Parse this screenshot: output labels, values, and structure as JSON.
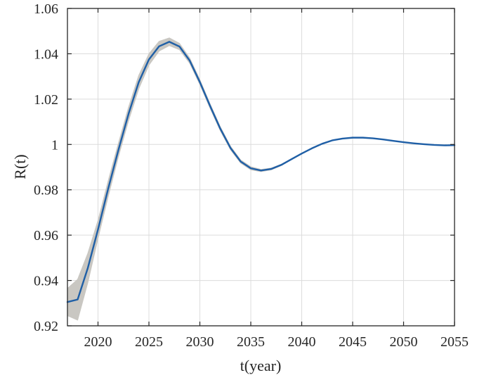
{
  "chart_data": {
    "type": "line",
    "title": "",
    "xlabel": "t(year)",
    "ylabel": "R(t)",
    "xlim": [
      2017,
      2055
    ],
    "ylim": [
      0.92,
      1.06
    ],
    "grid": true,
    "legend": "none",
    "colors": {
      "line": "#1f5fa6",
      "band": "#c9c7c2",
      "grid": "#dcdcdc",
      "axis": "#262626"
    },
    "xticks": [
      2020,
      2025,
      2030,
      2035,
      2040,
      2045,
      2050,
      2055
    ],
    "xtick_labels": [
      "2020",
      "2025",
      "2030",
      "2035",
      "2040",
      "2045",
      "2050",
      "2055"
    ],
    "yticks": [
      0.92,
      0.94,
      0.96,
      0.98,
      1.0,
      1.02,
      1.04,
      1.06
    ],
    "ytick_labels": [
      "0.92",
      "0.94",
      "0.96",
      "0.98",
      "1",
      "1.02",
      "1.04",
      "1.06"
    ],
    "series": [
      {
        "x": [
          2017,
          2018,
          2019,
          2020,
          2021,
          2022,
          2023,
          2024,
          2025,
          2026,
          2027,
          2028,
          2029,
          2030,
          2031,
          2032,
          2033,
          2034,
          2035,
          2036,
          2037,
          2038,
          2039,
          2040,
          2041,
          2042,
          2043,
          2044,
          2045,
          2046,
          2047,
          2048,
          2049,
          2050,
          2051,
          2052,
          2053,
          2054,
          2055
        ],
        "y": [
          0.9305,
          0.9316,
          0.9455,
          0.9625,
          0.9805,
          0.9975,
          1.0135,
          1.0275,
          1.0375,
          1.0433,
          1.0453,
          1.0432,
          1.037,
          1.0275,
          1.017,
          1.007,
          0.9985,
          0.9925,
          0.9895,
          0.9885,
          0.9892,
          0.991,
          0.9935,
          0.996,
          0.9983,
          1.0003,
          1.0018,
          1.0026,
          1.003,
          1.003,
          1.0027,
          1.0022,
          1.0016,
          1.001,
          1.0005,
          1.0001,
          0.9998,
          0.9996,
          0.9997
        ]
      }
    ],
    "band": {
      "x": [
        2017,
        2018,
        2019,
        2020,
        2021,
        2022,
        2023,
        2024,
        2025,
        2026,
        2027,
        2028,
        2029,
        2030,
        2031,
        2032,
        2033,
        2034,
        2035,
        2036,
        2037,
        2038,
        2039,
        2040
      ],
      "lower": [
        0.9245,
        0.9225,
        0.939,
        0.9585,
        0.977,
        0.9945,
        1.0105,
        1.0245,
        1.035,
        1.0412,
        1.0436,
        1.0418,
        1.0358,
        1.0264,
        1.016,
        1.0061,
        0.9977,
        0.9918,
        0.9888,
        0.988,
        0.9888,
        0.9907,
        0.9933,
        0.9959
      ],
      "upper": [
        0.9365,
        0.9405,
        0.952,
        0.9665,
        0.984,
        1.0005,
        1.0165,
        1.0305,
        1.04,
        1.0455,
        1.047,
        1.0446,
        1.0382,
        1.0286,
        1.018,
        1.0079,
        0.9993,
        0.9932,
        0.9902,
        0.989,
        0.9896,
        0.9913,
        0.9937,
        0.9961
      ]
    }
  }
}
